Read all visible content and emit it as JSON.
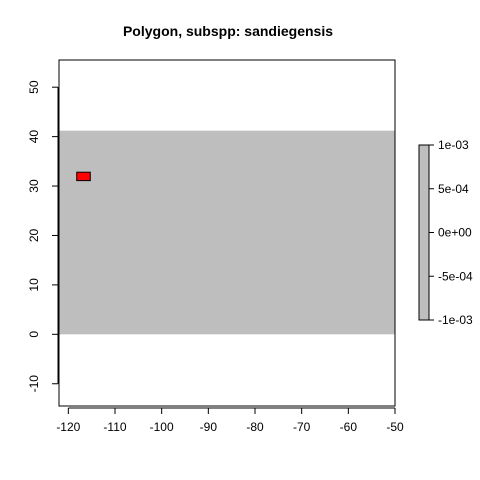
{
  "chart_data": {
    "type": "raster-map",
    "title": "Polygon, subspp: sandiegensis",
    "xlabel": "",
    "ylabel": "",
    "xlim": [
      -122,
      -50
    ],
    "ylim": [
      -14.5,
      55.5
    ],
    "x_ticks": [
      -120,
      -110,
      -100,
      -90,
      -80,
      -70,
      -60,
      -50
    ],
    "y_ticks": [
      -10,
      0,
      10,
      20,
      30,
      40,
      50
    ],
    "raster": {
      "x_range": [
        -122,
        -50
      ],
      "y_range": [
        0,
        41.2
      ],
      "value": 0,
      "color": "#bebebe"
    },
    "polygon": {
      "label": "sandiegensis",
      "x_range": [
        -118.2,
        -115.3
      ],
      "y_range": [
        31.1,
        32.8
      ],
      "fill": "#ff0000",
      "border": "#000000"
    },
    "legend": {
      "placement": "right",
      "range": [
        -0.001,
        0.001
      ],
      "ticks": [
        {
          "value": 0.001,
          "label": "1e-03"
        },
        {
          "value": 0.0005,
          "label": "5e-04"
        },
        {
          "value": 0,
          "label": "0e+00"
        },
        {
          "value": -0.0005,
          "label": "-5e-04"
        },
        {
          "value": -0.001,
          "label": "-1e-03"
        }
      ],
      "color": "#bebebe"
    }
  }
}
